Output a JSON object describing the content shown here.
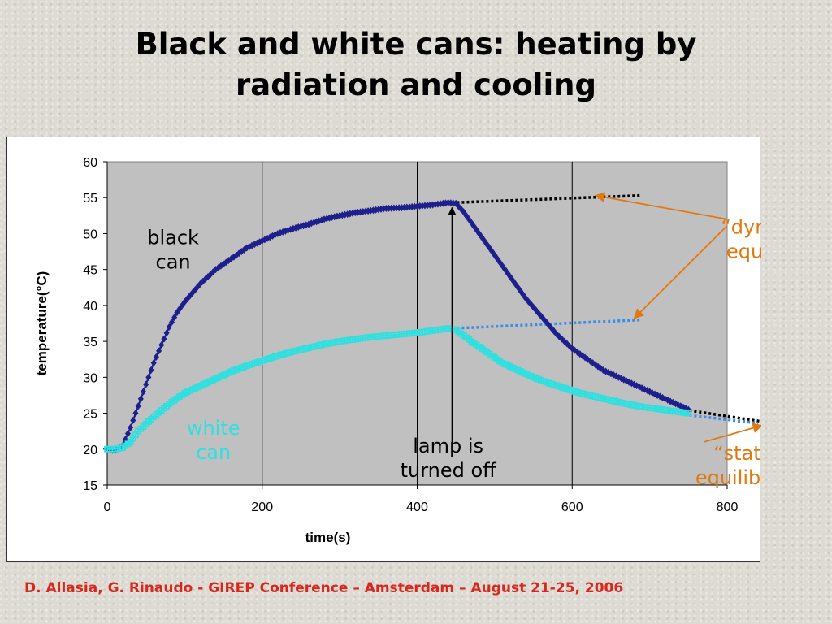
{
  "title": {
    "line1": "Black and white cans: heating by",
    "line2": "radiation and cooling"
  },
  "footer": "D. Allasia, G. Rinaudo - GIREP Conference – Amsterdam – August 21-25, 2006",
  "colors": {
    "black_can": "#1c1f8c",
    "white_can": "#2ee0e0",
    "dotted_black": "#000000",
    "dotted_blue": "#3a8ee8",
    "annotation_orange": "#e07a10",
    "plot_bg": "#c0c0c0",
    "footer": "#d8281e"
  },
  "chart_data": {
    "type": "scatter",
    "xlabel": "time(s)",
    "ylabel": "temperature(°C)",
    "xlim": [
      0,
      800
    ],
    "ylim": [
      15,
      60
    ],
    "xticks": [
      0,
      200,
      400,
      600,
      800
    ],
    "yticks": [
      15,
      20,
      25,
      30,
      35,
      40,
      45,
      50,
      55,
      60
    ],
    "grid": "vertical",
    "series": [
      {
        "id": "black",
        "points": [
          [
            0,
            20
          ],
          [
            10,
            19.8
          ],
          [
            20,
            20.5
          ],
          [
            30,
            23
          ],
          [
            40,
            26
          ],
          [
            50,
            29
          ],
          [
            60,
            32
          ],
          [
            70,
            34.5
          ],
          [
            80,
            37
          ],
          [
            90,
            39
          ],
          [
            100,
            40.5
          ],
          [
            120,
            43
          ],
          [
            140,
            45
          ],
          [
            160,
            46.5
          ],
          [
            180,
            48
          ],
          [
            200,
            49
          ],
          [
            220,
            50
          ],
          [
            240,
            50.7
          ],
          [
            260,
            51.3
          ],
          [
            280,
            52
          ],
          [
            300,
            52.5
          ],
          [
            320,
            52.9
          ],
          [
            340,
            53.2
          ],
          [
            360,
            53.5
          ],
          [
            380,
            53.6
          ],
          [
            400,
            53.8
          ],
          [
            420,
            54
          ],
          [
            440,
            54.3
          ],
          [
            450,
            54.2
          ],
          [
            460,
            53
          ],
          [
            480,
            50
          ],
          [
            500,
            47
          ],
          [
            520,
            44
          ],
          [
            540,
            41
          ],
          [
            560,
            38.5
          ],
          [
            580,
            36
          ],
          [
            600,
            34
          ],
          [
            620,
            32.5
          ],
          [
            640,
            31
          ],
          [
            660,
            30
          ],
          [
            680,
            29
          ],
          [
            700,
            28
          ],
          [
            720,
            27
          ],
          [
            740,
            26
          ],
          [
            750,
            25.5
          ]
        ]
      },
      {
        "id": "white",
        "points": [
          [
            0,
            20
          ],
          [
            10,
            20
          ],
          [
            20,
            20.2
          ],
          [
            30,
            21
          ],
          [
            40,
            22.5
          ],
          [
            60,
            24.5
          ],
          [
            80,
            26.3
          ],
          [
            100,
            27.8
          ],
          [
            120,
            28.8
          ],
          [
            140,
            29.8
          ],
          [
            160,
            30.8
          ],
          [
            180,
            31.6
          ],
          [
            200,
            32.3
          ],
          [
            220,
            33
          ],
          [
            240,
            33.6
          ],
          [
            260,
            34.1
          ],
          [
            280,
            34.6
          ],
          [
            300,
            35
          ],
          [
            320,
            35.3
          ],
          [
            340,
            35.6
          ],
          [
            360,
            35.8
          ],
          [
            380,
            36
          ],
          [
            400,
            36.2
          ],
          [
            420,
            36.5
          ],
          [
            440,
            36.8
          ],
          [
            450,
            36.6
          ],
          [
            470,
            35
          ],
          [
            490,
            33.5
          ],
          [
            510,
            32
          ],
          [
            530,
            31
          ],
          [
            550,
            30
          ],
          [
            570,
            29.2
          ],
          [
            590,
            28.5
          ],
          [
            610,
            27.8
          ],
          [
            630,
            27.3
          ],
          [
            650,
            26.8
          ],
          [
            670,
            26.3
          ],
          [
            690,
            25.9
          ],
          [
            710,
            25.6
          ],
          [
            730,
            25.3
          ],
          [
            750,
            25
          ]
        ]
      }
    ],
    "trend_lines": [
      {
        "id": "black-equilibrium",
        "points": [
          [
            445,
            54.3
          ],
          [
            690,
            55.3
          ]
        ]
      },
      {
        "id": "white-equilibrium",
        "points": [
          [
            445,
            36.8
          ],
          [
            690,
            38
          ]
        ]
      },
      {
        "id": "static-black",
        "points": [
          [
            745,
            25.5
          ],
          [
            865,
            23.5
          ]
        ]
      },
      {
        "id": "static-blue",
        "points": [
          [
            745,
            24.8
          ],
          [
            840,
            23.6
          ]
        ]
      }
    ],
    "annotations": [
      {
        "id": "black-can",
        "lines": [
          "black",
          "can"
        ],
        "at": [
          85,
          48.5
        ],
        "color": "#000000"
      },
      {
        "id": "white-can",
        "lines": [
          "white",
          "can"
        ],
        "at": [
          137,
          22
        ],
        "color": "#2ee0e0"
      },
      {
        "id": "lamp-off",
        "lines": [
          "lamp is",
          "turned off"
        ],
        "at": [
          440,
          19.5
        ],
        "color": "#000000"
      },
      {
        "id": "dynamical",
        "lines": [
          "“dynamical”",
          "equilibrium"
        ],
        "at": [
          870,
          50
        ],
        "color": "#e07a10"
      },
      {
        "id": "static",
        "lines": [
          "“static”",
          "equilibrium"
        ],
        "at": [
          830,
          18.5
        ],
        "color": "#e07a10"
      }
    ]
  }
}
